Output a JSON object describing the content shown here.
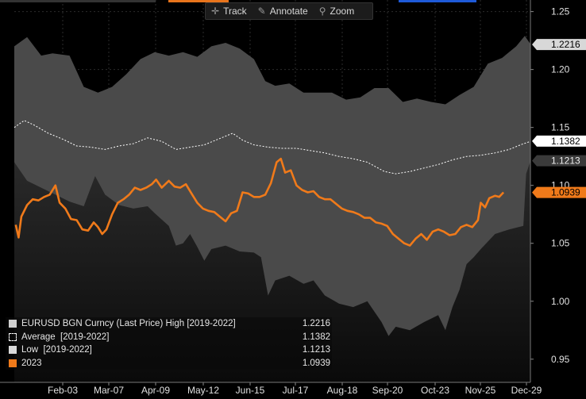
{
  "toolbar": {
    "track": "Track",
    "annotate": "Annotate",
    "zoom": "Zoom"
  },
  "colors": {
    "background": "#000000",
    "band": "#4a4a4a",
    "low_fill": "#141414",
    "average": "#ffffff",
    "series_2023": "#f07a1a",
    "accent_blue": "#1e5ad8",
    "accent_orange": "#e8741c"
  },
  "chart_data": {
    "type": "area",
    "title": "",
    "xlabel": "",
    "ylabel": "",
    "ylim": [
      0.93,
      1.26
    ],
    "y_ticks": [
      "1.25",
      "1.20",
      "1.15",
      "1.10",
      "1.05",
      "1.00",
      "0.95"
    ],
    "x_ticks": [
      "Feb-03",
      "Mar-07",
      "Apr-09",
      "May-12",
      "Jun-15",
      "Jul-17",
      "Aug-18",
      "Sep-20",
      "Oct-23",
      "Nov-25",
      "Dec-29"
    ],
    "grid": true,
    "legend_position": "bottom-left",
    "x_domain": [
      1,
      365
    ],
    "series": [
      {
        "name": "EURUSD BGN Curncy (Last Price) High [2019-2022]",
        "legend_value": "1.2216",
        "color": "#4a4a4a",
        "points": [
          [
            1,
            1.22
          ],
          [
            10,
            1.228
          ],
          [
            20,
            1.212
          ],
          [
            28,
            1.214
          ],
          [
            40,
            1.212
          ],
          [
            50,
            1.185
          ],
          [
            60,
            1.18
          ],
          [
            70,
            1.185
          ],
          [
            80,
            1.196
          ],
          [
            90,
            1.209
          ],
          [
            100,
            1.215
          ],
          [
            110,
            1.212
          ],
          [
            120,
            1.215
          ],
          [
            130,
            1.211
          ],
          [
            140,
            1.22
          ],
          [
            150,
            1.223
          ],
          [
            160,
            1.218
          ],
          [
            170,
            1.209
          ],
          [
            178,
            1.19
          ],
          [
            185,
            1.186
          ],
          [
            195,
            1.188
          ],
          [
            205,
            1.18
          ],
          [
            215,
            1.18
          ],
          [
            225,
            1.18
          ],
          [
            235,
            1.174
          ],
          [
            245,
            1.176
          ],
          [
            255,
            1.184
          ],
          [
            265,
            1.184
          ],
          [
            275,
            1.172
          ],
          [
            285,
            1.175
          ],
          [
            295,
            1.172
          ],
          [
            305,
            1.17
          ],
          [
            315,
            1.178
          ],
          [
            325,
            1.185
          ],
          [
            335,
            1.205
          ],
          [
            345,
            1.21
          ],
          [
            355,
            1.22
          ],
          [
            361,
            1.229
          ],
          [
            365,
            1.222
          ]
        ]
      },
      {
        "name": "Average  [2019-2022]",
        "legend_value": "1.1382",
        "color": "#ffffff",
        "points": [
          [
            1,
            1.15
          ],
          [
            8,
            1.156
          ],
          [
            15,
            1.152
          ],
          [
            25,
            1.145
          ],
          [
            35,
            1.14
          ],
          [
            45,
            1.134
          ],
          [
            55,
            1.133
          ],
          [
            65,
            1.131
          ],
          [
            75,
            1.134
          ],
          [
            85,
            1.136
          ],
          [
            95,
            1.141
          ],
          [
            105,
            1.138
          ],
          [
            115,
            1.131
          ],
          [
            125,
            1.133
          ],
          [
            135,
            1.135
          ],
          [
            145,
            1.14
          ],
          [
            155,
            1.145
          ],
          [
            162,
            1.139
          ],
          [
            170,
            1.135
          ],
          [
            180,
            1.133
          ],
          [
            190,
            1.132
          ],
          [
            200,
            1.132
          ],
          [
            210,
            1.13
          ],
          [
            220,
            1.128
          ],
          [
            230,
            1.125
          ],
          [
            240,
            1.123
          ],
          [
            250,
            1.12
          ],
          [
            262,
            1.112
          ],
          [
            270,
            1.11
          ],
          [
            280,
            1.112
          ],
          [
            290,
            1.115
          ],
          [
            300,
            1.118
          ],
          [
            310,
            1.122
          ],
          [
            320,
            1.125
          ],
          [
            330,
            1.126
          ],
          [
            340,
            1.128
          ],
          [
            350,
            1.131
          ],
          [
            358,
            1.135
          ],
          [
            365,
            1.138
          ]
        ]
      },
      {
        "name": "Low  [2019-2022]",
        "legend_value": "1.1213",
        "color": "#d9d9d9",
        "points": [
          [
            1,
            1.12
          ],
          [
            10,
            1.104
          ],
          [
            20,
            1.098
          ],
          [
            30,
            1.092
          ],
          [
            40,
            1.086
          ],
          [
            50,
            1.082
          ],
          [
            58,
            1.108
          ],
          [
            65,
            1.092
          ],
          [
            75,
            1.083
          ],
          [
            85,
            1.08
          ],
          [
            95,
            1.082
          ],
          [
            100,
            1.076
          ],
          [
            110,
            1.065
          ],
          [
            115,
            1.048
          ],
          [
            120,
            1.05
          ],
          [
            125,
            1.058
          ],
          [
            130,
            1.047
          ],
          [
            135,
            1.035
          ],
          [
            140,
            1.045
          ],
          [
            150,
            1.048
          ],
          [
            160,
            1.043
          ],
          [
            170,
            1.042
          ],
          [
            175,
            1.038
          ],
          [
            180,
            1.005
          ],
          [
            185,
            1.018
          ],
          [
            195,
            1.022
          ],
          [
            205,
            1.015
          ],
          [
            212,
            1.018
          ],
          [
            220,
            1.005
          ],
          [
            230,
            0.998
          ],
          [
            240,
            0.995
          ],
          [
            250,
            1.0
          ],
          [
            260,
            0.982
          ],
          [
            265,
            0.97
          ],
          [
            270,
            0.978
          ],
          [
            280,
            0.975
          ],
          [
            290,
            0.982
          ],
          [
            300,
            0.988
          ],
          [
            305,
            0.975
          ],
          [
            310,
            0.995
          ],
          [
            315,
            1.01
          ],
          [
            320,
            1.032
          ],
          [
            325,
            1.038
          ],
          [
            330,
            1.045
          ],
          [
            340,
            1.058
          ],
          [
            350,
            1.062
          ],
          [
            360,
            1.065
          ],
          [
            362,
            1.11
          ],
          [
            365,
            1.121
          ]
        ]
      },
      {
        "name": "2023",
        "legend_value": "1.0939",
        "color": "#f07a1a",
        "points": [
          [
            2,
            1.066
          ],
          [
            4,
            1.055
          ],
          [
            6,
            1.073
          ],
          [
            10,
            1.083
          ],
          [
            14,
            1.088
          ],
          [
            18,
            1.087
          ],
          [
            22,
            1.09
          ],
          [
            26,
            1.092
          ],
          [
            30,
            1.1
          ],
          [
            33,
            1.085
          ],
          [
            37,
            1.08
          ],
          [
            41,
            1.071
          ],
          [
            45,
            1.07
          ],
          [
            49,
            1.062
          ],
          [
            53,
            1.061
          ],
          [
            57,
            1.068
          ],
          [
            60,
            1.064
          ],
          [
            63,
            1.058
          ],
          [
            66,
            1.062
          ],
          [
            70,
            1.075
          ],
          [
            74,
            1.085
          ],
          [
            78,
            1.088
          ],
          [
            82,
            1.092
          ],
          [
            86,
            1.098
          ],
          [
            90,
            1.096
          ],
          [
            94,
            1.098
          ],
          [
            98,
            1.101
          ],
          [
            101,
            1.105
          ],
          [
            105,
            1.098
          ],
          [
            110,
            1.104
          ],
          [
            114,
            1.099
          ],
          [
            118,
            1.098
          ],
          [
            122,
            1.101
          ],
          [
            126,
            1.093
          ],
          [
            130,
            1.085
          ],
          [
            134,
            1.08
          ],
          [
            138,
            1.078
          ],
          [
            142,
            1.077
          ],
          [
            146,
            1.073
          ],
          [
            150,
            1.069
          ],
          [
            154,
            1.076
          ],
          [
            158,
            1.078
          ],
          [
            162,
            1.094
          ],
          [
            166,
            1.093
          ],
          [
            170,
            1.09
          ],
          [
            174,
            1.09
          ],
          [
            178,
            1.092
          ],
          [
            182,
            1.102
          ],
          [
            186,
            1.12
          ],
          [
            189,
            1.123
          ],
          [
            192,
            1.111
          ],
          [
            196,
            1.113
          ],
          [
            200,
            1.1
          ],
          [
            204,
            1.096
          ],
          [
            208,
            1.094
          ],
          [
            212,
            1.095
          ],
          [
            216,
            1.09
          ],
          [
            220,
            1.088
          ],
          [
            224,
            1.088
          ],
          [
            228,
            1.084
          ],
          [
            232,
            1.08
          ],
          [
            236,
            1.078
          ],
          [
            240,
            1.077
          ],
          [
            244,
            1.075
          ],
          [
            248,
            1.072
          ],
          [
            252,
            1.072
          ],
          [
            256,
            1.068
          ],
          [
            260,
            1.067
          ],
          [
            264,
            1.065
          ],
          [
            268,
            1.058
          ],
          [
            272,
            1.054
          ],
          [
            276,
            1.05
          ],
          [
            280,
            1.048
          ],
          [
            284,
            1.054
          ],
          [
            288,
            1.058
          ],
          [
            292,
            1.053
          ],
          [
            296,
            1.06
          ],
          [
            300,
            1.062
          ],
          [
            304,
            1.06
          ],
          [
            308,
            1.057
          ],
          [
            312,
            1.058
          ],
          [
            316,
            1.064
          ],
          [
            320,
            1.066
          ],
          [
            324,
            1.064
          ],
          [
            328,
            1.07
          ],
          [
            330,
            1.085
          ],
          [
            333,
            1.081
          ],
          [
            336,
            1.089
          ],
          [
            340,
            1.091
          ],
          [
            343,
            1.09
          ],
          [
            346,
            1.094
          ]
        ]
      }
    ]
  }
}
